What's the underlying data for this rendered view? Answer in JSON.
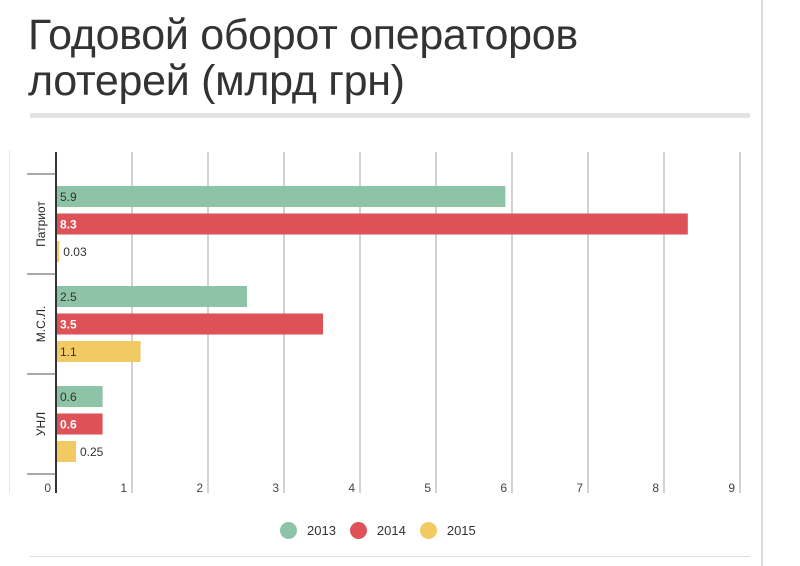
{
  "title_line1": "Годовой оборот операторов",
  "title_line2": "лотерей (млрд грн)",
  "chart_data": {
    "type": "bar",
    "orientation": "horizontal",
    "title": "Годовой оборот операторов лотерей (млрд грн)",
    "categories": [
      "Патриот",
      "М.С.Л.",
      "УНЛ"
    ],
    "series": [
      {
        "name": "2013",
        "color": "#8dc3a7",
        "values": [
          5.9,
          2.5,
          0.6
        ],
        "labels": [
          "5.9",
          "2.5",
          "0.6"
        ]
      },
      {
        "name": "2014",
        "color": "#de5257",
        "values": [
          8.3,
          3.5,
          0.6
        ],
        "labels": [
          "8.3",
          "3.5",
          "0.6"
        ]
      },
      {
        "name": "2015",
        "color": "#f1ca64",
        "values": [
          0.03,
          1.1,
          0.25
        ],
        "labels": [
          "0.03",
          "1.1",
          "0.25"
        ]
      }
    ],
    "xlim": [
      0,
      9
    ],
    "xticks": [
      "0",
      "1",
      "2",
      "3",
      "4",
      "5",
      "6",
      "7",
      "8",
      "9"
    ],
    "grid": true,
    "legend_position": "bottom"
  }
}
